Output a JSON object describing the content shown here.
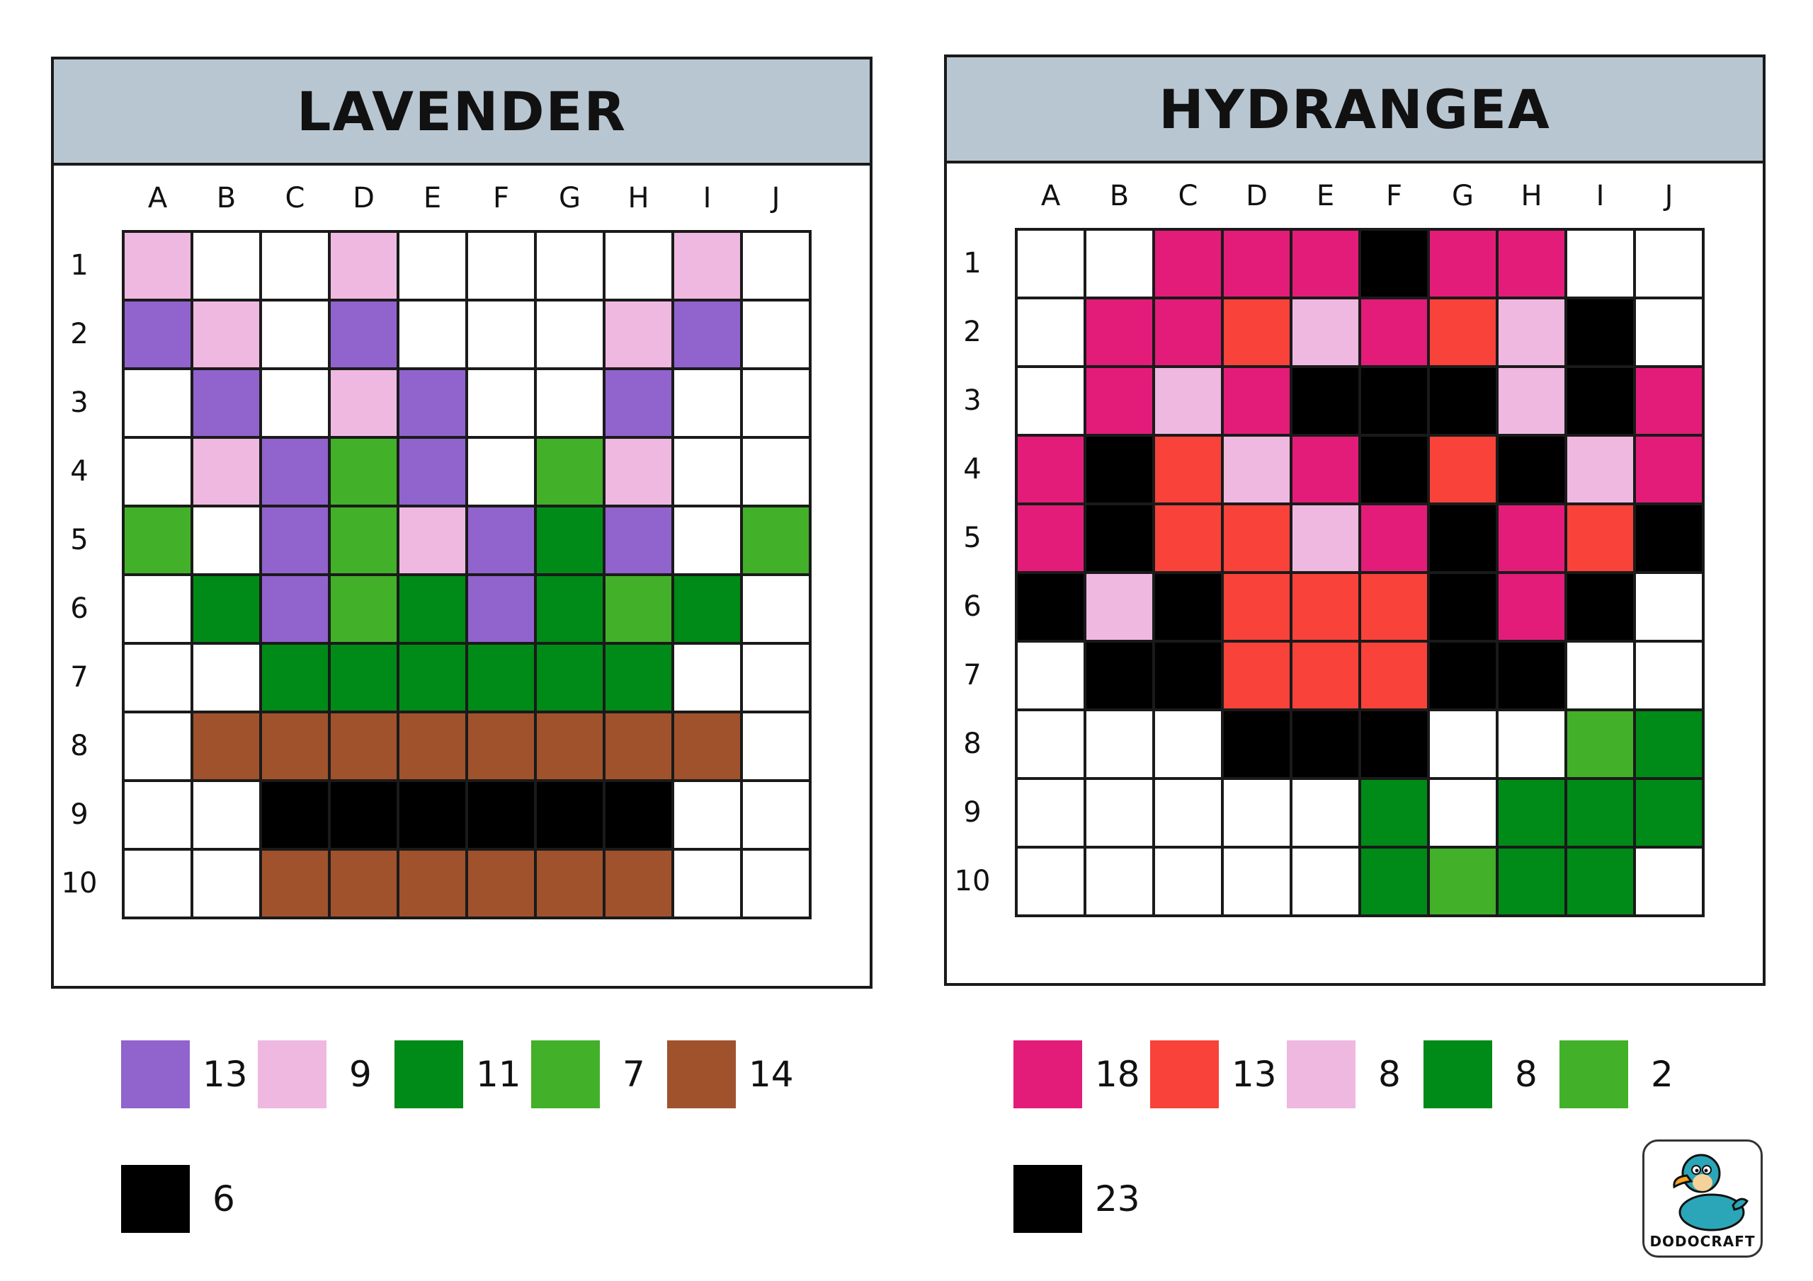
{
  "colors": {
    "P": "#9163cc",
    "K": "#efb8e0",
    "G": "#008a17",
    "L": "#43b02a",
    "B": "#a0522d",
    "X": "#000000",
    "M": "#e31c79",
    "R": "#f9423a",
    "W": "#ffffff",
    "header": "#b8c6d1"
  },
  "columns": [
    "A",
    "B",
    "C",
    "D",
    "E",
    "F",
    "G",
    "H",
    "I",
    "J"
  ],
  "rows": [
    "1",
    "2",
    "3",
    "4",
    "5",
    "6",
    "7",
    "8",
    "9",
    "10"
  ],
  "lavender": {
    "title": "LAVENDER",
    "grid": [
      "KWWKWWWWKW",
      "PKWPWWWKPW",
      "WPWKPWWPWW",
      "WKPLPWLKWW",
      "LWPLKPGPWL",
      "WGPLGPGLGW",
      "WWGGGGGGWW",
      "WBBBBBBBBW",
      "WWXXXXXXWW",
      "WWBBBBBBWW"
    ],
    "legend": [
      {
        "color": "P",
        "count": "13"
      },
      {
        "color": "K",
        "count": "9"
      },
      {
        "color": "G",
        "count": "11"
      },
      {
        "color": "L",
        "count": "7"
      },
      {
        "color": "B",
        "count": "14"
      },
      {
        "color": "X",
        "count": "6"
      }
    ]
  },
  "hydrangea": {
    "title": "HYDRANGEA",
    "grid": [
      "WWMMMXMMWW",
      "WMMRKMRKXW",
      "WMKMXXXKXM",
      "MXRKMXRXKM",
      "MXRRKMXMRX",
      "XKXRRRXMXW",
      "WXXRRRXXWW",
      "WWWXXXWWLG",
      "WWWWWGWGGG",
      "WWWWWGLGGW"
    ],
    "legend": [
      {
        "color": "M",
        "count": "18"
      },
      {
        "color": "R",
        "count": "13"
      },
      {
        "color": "K",
        "count": "8"
      },
      {
        "color": "G",
        "count": "8"
      },
      {
        "color": "L",
        "count": "2"
      },
      {
        "color": "X",
        "count": "23"
      }
    ]
  },
  "logo": {
    "text": "DODOCRAFT",
    "icon": "dodo-bird-icon"
  }
}
